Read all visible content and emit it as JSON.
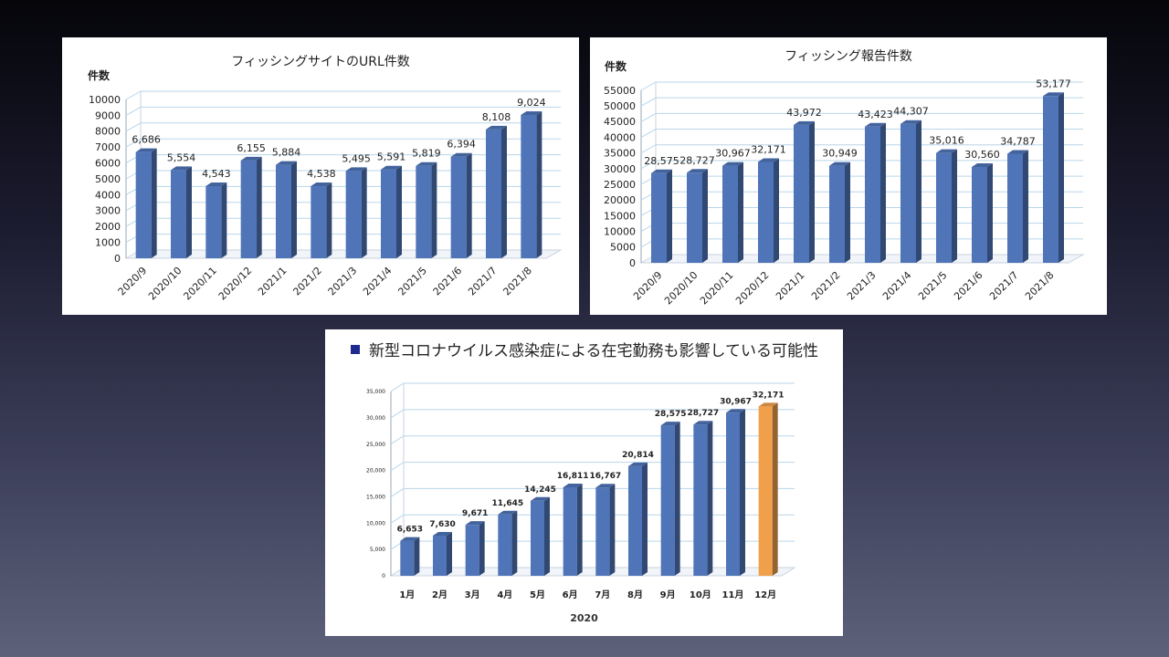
{
  "chart_data": [
    {
      "id": "chart1",
      "type": "bar",
      "title": "フィッシングサイトのURL件数",
      "ylabel": "件数",
      "categories": [
        "2020/9",
        "2020/10",
        "2020/11",
        "2020/12",
        "2021/1",
        "2021/2",
        "2021/3",
        "2021/4",
        "2021/5",
        "2021/6",
        "2021/7",
        "2021/8"
      ],
      "values": [
        6686,
        5554,
        4543,
        6155,
        5884,
        4538,
        5495,
        5591,
        5819,
        6394,
        8108,
        9024
      ],
      "data_labels": [
        "6,686",
        "5,554",
        "4,543",
        "6,155",
        "5,884",
        "4,538",
        "5,495",
        "5,591",
        "5,819",
        "6,394",
        "8,108",
        "9,024"
      ],
      "ylim": [
        0,
        10000
      ],
      "yticks": [
        "0",
        "1000",
        "2000",
        "3000",
        "4000",
        "5000",
        "6000",
        "7000",
        "8000",
        "9000",
        "10000"
      ],
      "grid": true,
      "bar_color": "#4f74b8"
    },
    {
      "id": "chart2",
      "type": "bar",
      "title": "フィッシング報告件数",
      "ylabel": "件数",
      "categories": [
        "2020/9",
        "2020/10",
        "2020/11",
        "2020/12",
        "2021/1",
        "2021/2",
        "2021/3",
        "2021/4",
        "2021/5",
        "2021/6",
        "2021/7",
        "2021/8"
      ],
      "values": [
        28575,
        28727,
        30967,
        32171,
        43972,
        30949,
        43423,
        44307,
        35016,
        30560,
        34787,
        53177
      ],
      "data_labels": [
        "28,575",
        "28,727",
        "30,967",
        "32,171",
        "43,972",
        "30,949",
        "43,423",
        "44,307",
        "35,016",
        "30,560",
        "34,787",
        "53,177"
      ],
      "ylim": [
        0,
        55000
      ],
      "yticks": [
        "0",
        "5000",
        "10000",
        "15000",
        "20000",
        "25000",
        "30000",
        "35000",
        "40000",
        "45000",
        "50000",
        "55000"
      ],
      "grid": true,
      "bar_color": "#4f74b8"
    },
    {
      "id": "chart3",
      "type": "bar",
      "title": "",
      "xlabel": "2020",
      "categories": [
        "1月",
        "2月",
        "3月",
        "4月",
        "5月",
        "6月",
        "7月",
        "8月",
        "9月",
        "10月",
        "11月",
        "12月"
      ],
      "values": [
        6653,
        7630,
        9671,
        11645,
        14245,
        16811,
        16767,
        20814,
        28575,
        28727,
        30967,
        32171
      ],
      "data_labels": [
        "6,653",
        "7,630",
        "9,671",
        "11,645",
        "14,245",
        "16,811",
        "16,767",
        "20,814",
        "28,575",
        "28,727",
        "30,967",
        "32,171"
      ],
      "ylim": [
        0,
        35000
      ],
      "yticks": [
        "0",
        "5,000",
        "10,000",
        "15,000",
        "20,000",
        "25,000",
        "30,000",
        "35,000"
      ],
      "grid": true,
      "bar_color": "#4f74b8",
      "highlight_color": "#f0a04b",
      "highlight_index": 11
    }
  ],
  "note": {
    "text": "新型コロナウイルス感染症による在宅勤務も影響している可能性",
    "bullet_color": "#1f2a8f"
  }
}
